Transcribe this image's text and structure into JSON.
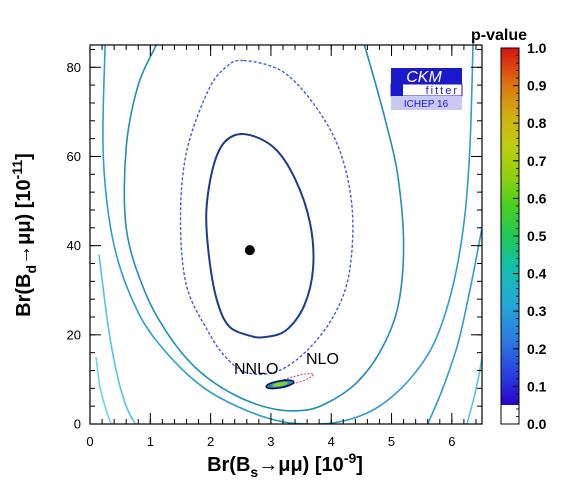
{
  "chart_data": {
    "type": "contour",
    "xlabel_parts": [
      "Br(B",
      "s",
      "→μμ) [10",
      "-9",
      "]"
    ],
    "ylabel_parts": [
      "Br(B",
      "d",
      "→μμ) [10",
      "-11",
      "]"
    ],
    "xlim": [
      0,
      6.5
    ],
    "ylim": [
      0,
      85
    ],
    "x_ticks": [
      0,
      1,
      2,
      3,
      4,
      5,
      6
    ],
    "y_ticks": [
      0,
      20,
      40,
      60,
      80
    ],
    "best_fit": {
      "x": 2.65,
      "y": 39
    },
    "confidence_contours": [
      {
        "level": "1 sigma",
        "style": "solid",
        "color": "#1a3c8c",
        "x": [
          2.58,
          3.05,
          3.4,
          3.65,
          3.7,
          3.55,
          3.25,
          2.9,
          2.65,
          2.3,
          2.1,
          1.97,
          1.93,
          2.05,
          2.25
        ],
        "y": [
          65.0,
          62.0,
          55.0,
          45.0,
          35.0,
          26.5,
          21.0,
          19.5,
          19.8,
          22.0,
          28.0,
          38.0,
          48.0,
          58.0,
          63.5
        ]
      },
      {
        "level": "2 sigma",
        "style": "dashed",
        "color": "#3f5ed0",
        "x": [
          2.55,
          3.2,
          3.75,
          4.15,
          4.35,
          4.3,
          4.05,
          3.6,
          3.1,
          2.6,
          2.25,
          1.97,
          1.6,
          1.5,
          1.6,
          1.95,
          2.25
        ],
        "y": [
          81.5,
          79.0,
          71.0,
          61.0,
          48.0,
          34.0,
          24.5,
          16.5,
          11.8,
          11.5,
          15.0,
          20.5,
          31.0,
          46.0,
          61.0,
          74.5,
          80.0
        ]
      }
    ],
    "p_value_contours": [
      {
        "color": "#1f8fb5",
        "x": [
          1.1,
          0.8,
          0.6,
          0.6,
          0.9,
          1.3,
          1.8,
          2.4,
          3.0,
          3.5,
          3.9,
          4.4,
          4.8,
          5.1,
          5.2,
          5.1,
          4.9,
          4.7,
          4.55
        ],
        "y": [
          85,
          76,
          62,
          44,
          30,
          20,
          12,
          6.5,
          3.5,
          3.0,
          4.5,
          9.0,
          16.0,
          26.0,
          40.0,
          56.0,
          68.0,
          78.0,
          85.0
        ]
      },
      {
        "color": "#2b9fc8",
        "x": [
          0.25,
          0.22,
          0.4,
          0.8,
          1.3,
          1.9,
          2.6,
          3.2,
          3.8,
          4.3,
          4.8,
          5.3,
          5.7,
          6.0,
          6.2,
          6.3,
          6.35
        ],
        "y": [
          85,
          60,
          40,
          25,
          15.5,
          8.0,
          3.0,
          0.5,
          0.0,
          1.0,
          4.0,
          10.0,
          18.0,
          30.0,
          45.0,
          62.0,
          85.0
        ]
      },
      {
        "color": "#52c3e8",
        "x": [
          0.15,
          0.3,
          0.45,
          0.6,
          0.75
        ],
        "y": [
          38,
          22,
          11,
          4,
          0
        ]
      },
      {
        "color": "#6bd2f0",
        "x": [
          0.1,
          0.17,
          0.27,
          0.35
        ],
        "y": [
          15,
          8,
          3,
          0
        ]
      },
      {
        "color": "#2b9fc8",
        "x": [
          5.6,
          5.85,
          6.1,
          6.3,
          6.5
        ],
        "y": [
          0,
          8,
          18,
          30,
          44
        ]
      },
      {
        "color": "#52c3e8",
        "x": [
          6.25,
          6.35,
          6.45,
          6.5
        ],
        "y": [
          0,
          5,
          11,
          15
        ]
      }
    ],
    "predictions": [
      {
        "label": "NNLO",
        "x": 3.15,
        "y": 8.9
      },
      {
        "label": "NLO",
        "x": 3.45,
        "y": 10.3
      }
    ],
    "colorbar": {
      "title": "p-value",
      "min": 0.0,
      "max": 1.0,
      "ticks": [
        "0.0",
        "0.1",
        "0.2",
        "0.3",
        "0.4",
        "0.5",
        "0.6",
        "0.7",
        "0.8",
        "0.9",
        "1.0"
      ],
      "stops": [
        {
          "v": 0.0,
          "color": "#ffffff"
        },
        {
          "v": 0.05,
          "color": "#ffffff"
        },
        {
          "v": 0.05,
          "color": "#2a00c8"
        },
        {
          "v": 0.13,
          "color": "#2840e0"
        },
        {
          "v": 0.22,
          "color": "#2e78e0"
        },
        {
          "v": 0.32,
          "color": "#22a8d8"
        },
        {
          "v": 0.42,
          "color": "#14c0a8"
        },
        {
          "v": 0.5,
          "color": "#20c858"
        },
        {
          "v": 0.58,
          "color": "#48d020"
        },
        {
          "v": 0.66,
          "color": "#90d010"
        },
        {
          "v": 0.74,
          "color": "#c0cc10"
        },
        {
          "v": 0.82,
          "color": "#d0b010"
        },
        {
          "v": 0.9,
          "color": "#dc7810"
        },
        {
          "v": 1.0,
          "color": "#d81010"
        }
      ]
    },
    "logo": {
      "line1": "CKM",
      "line2": "fitter",
      "line3": "ICHEP 16"
    }
  }
}
